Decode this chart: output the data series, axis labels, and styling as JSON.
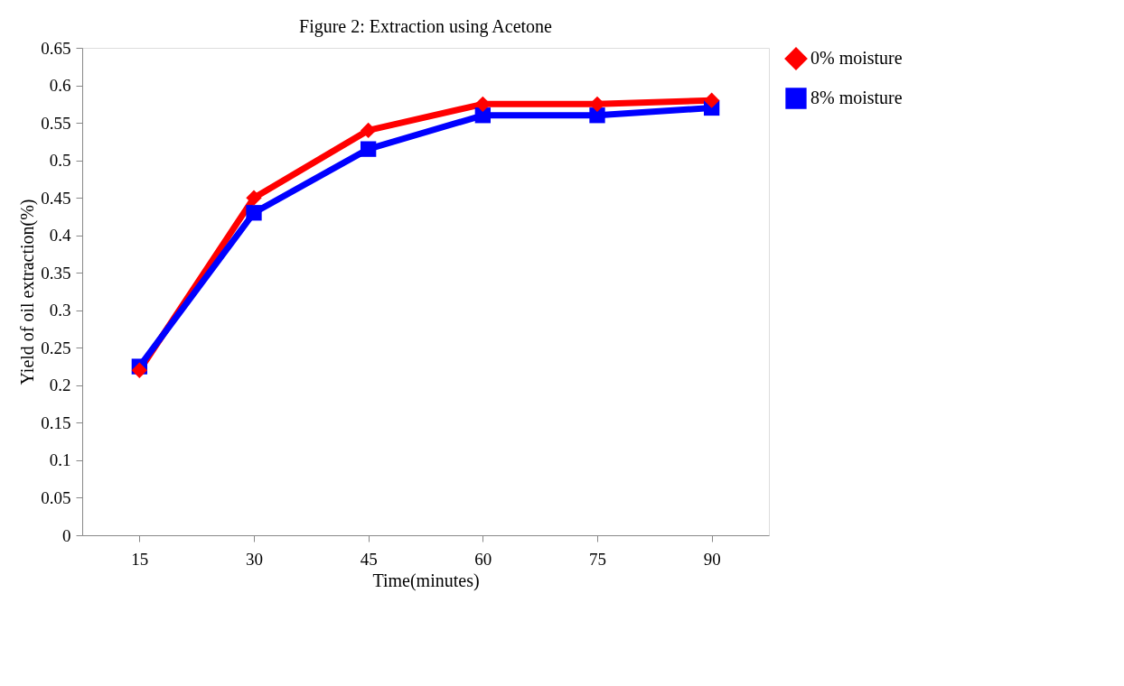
{
  "chart_data": {
    "type": "line",
    "title": "Figure 2: Extraction using Acetone",
    "xlabel": "Time(minutes)",
    "ylabel": "Yield of oil extraction(%)",
    "categories": [
      "15",
      "30",
      "45",
      "60",
      "75",
      "90"
    ],
    "series": [
      {
        "name": "0% moisture",
        "color": "#ff0000",
        "marker": "diamond",
        "values": [
          0.22,
          0.45,
          0.54,
          0.575,
          0.575,
          0.58
        ]
      },
      {
        "name": "8% moisture",
        "color": "#0000ff",
        "marker": "square",
        "values": [
          0.225,
          0.43,
          0.515,
          0.56,
          0.56,
          0.57
        ]
      }
    ],
    "ylim": [
      0,
      0.65
    ],
    "yticks": [
      0,
      0.05,
      0.1,
      0.15,
      0.2,
      0.25,
      0.3,
      0.35,
      0.4,
      0.45,
      0.5,
      0.55,
      0.6,
      0.65
    ],
    "grid": false,
    "legend": "right"
  }
}
